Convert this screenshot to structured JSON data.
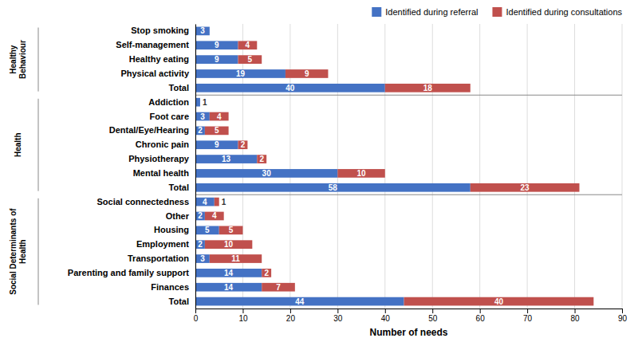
{
  "chart_data": {
    "type": "bar",
    "orientation": "horizontal",
    "stacked": true,
    "categories": [
      "Stop smoking",
      "Self-management",
      "Healthy eating",
      "Physical activity",
      "Total",
      "Addiction",
      "Foot care",
      "Dental/Eye/Hearing",
      "Chronic pain",
      "Physiotherapy",
      "Mental health",
      "Total",
      "Social connectedness",
      "Other",
      "Housing",
      "Employment",
      "Transportation",
      "Parenting and family support",
      "Finances",
      "Total"
    ],
    "series": [
      {
        "name": "Identified during referral",
        "color": "#4472C4",
        "values": [
          3,
          9,
          9,
          19,
          40,
          1,
          3,
          2,
          9,
          13,
          30,
          58,
          4,
          2,
          5,
          2,
          3,
          14,
          14,
          44
        ]
      },
      {
        "name": "Identified during consultations",
        "color": "#C0504D",
        "values": [
          0,
          4,
          5,
          9,
          18,
          0,
          4,
          5,
          2,
          2,
          10,
          23,
          1,
          4,
          5,
          10,
          11,
          2,
          7,
          40
        ]
      }
    ],
    "xlabel": "Number of needs",
    "xlim": [
      0,
      90
    ],
    "xticks": [
      0,
      10,
      20,
      30,
      40,
      50,
      60,
      70,
      80,
      90
    ],
    "grid": true,
    "legend": "upper right",
    "data_labels": true,
    "groups": [
      {
        "label": "Healthy\nBehaviour",
        "start": 0,
        "end": 4
      },
      {
        "label": "Health",
        "start": 5,
        "end": 11
      },
      {
        "label": "Social Determinants of\nHealth",
        "start": 12,
        "end": 19
      }
    ]
  }
}
